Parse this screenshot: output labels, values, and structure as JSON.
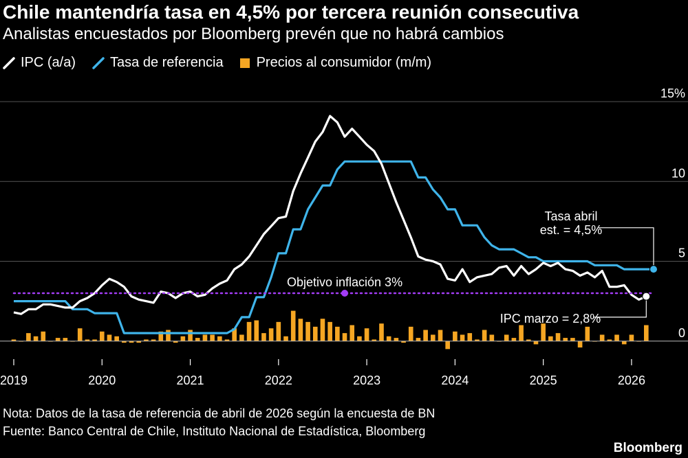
{
  "header": {
    "title": "Chile mantendría tasa en 4,5% por tercera reunión consecutiva",
    "subtitle": "Analistas encuestados por Bloomberg prevén que no habrá cambios"
  },
  "legend": {
    "items": [
      {
        "label": "IPC (a/a)",
        "color": "#ffffff",
        "shape": "line"
      },
      {
        "label": "Tasa de referencia",
        "color": "#3fb4ea",
        "shape": "line"
      },
      {
        "label": "Precios al consumidor (m/m)",
        "color": "#f5a623",
        "shape": "bar"
      }
    ]
  },
  "footer": {
    "note": "Nota: Datos de la tasa de referencia de abril de 2026 según la encuesta de BN",
    "source": "Fuente: Banco Central de Chile, Instituto Nacional de Estadística, Bloomberg",
    "logo": "Bloomberg"
  },
  "chart_data": {
    "type": "line",
    "x_start": "2019-01",
    "frequency": "monthly",
    "xlim": [
      "2019-01",
      "2026-04"
    ],
    "ylim": [
      -1,
      15
    ],
    "y_ticks": [
      {
        "value": 0,
        "label": "0"
      },
      {
        "value": 5,
        "label": "5"
      },
      {
        "value": 10,
        "label": "10"
      },
      {
        "value": 15,
        "label": "15%"
      }
    ],
    "x_ticks": [
      {
        "date": "2019-01",
        "label": "2019"
      },
      {
        "date": "2020-01",
        "label": "2020"
      },
      {
        "date": "2021-01",
        "label": "2021"
      },
      {
        "date": "2022-01",
        "label": "2022"
      },
      {
        "date": "2023-01",
        "label": "2023"
      },
      {
        "date": "2024-01",
        "label": "2024"
      },
      {
        "date": "2025-01",
        "label": "2025"
      },
      {
        "date": "2026-01",
        "label": "2026"
      }
    ],
    "series": [
      {
        "name": "IPC (a/a)",
        "color": "#ffffff",
        "values": [
          1.8,
          1.7,
          2.0,
          2.0,
          2.3,
          2.3,
          2.2,
          2.1,
          2.1,
          2.5,
          2.7,
          3.0,
          3.5,
          3.9,
          3.7,
          3.4,
          2.8,
          2.6,
          2.5,
          2.4,
          3.1,
          3.0,
          2.7,
          3.0,
          3.1,
          2.8,
          2.9,
          3.3,
          3.6,
          3.8,
          4.5,
          4.8,
          5.3,
          6.0,
          6.7,
          7.2,
          7.7,
          7.8,
          9.4,
          10.5,
          11.5,
          12.5,
          13.1,
          14.1,
          13.7,
          12.8,
          13.3,
          12.8,
          12.3,
          11.9,
          11.1,
          9.9,
          8.7,
          7.6,
          6.5,
          5.3,
          5.1,
          5.0,
          4.8,
          3.9,
          3.8,
          4.5,
          3.7,
          4.0,
          4.1,
          4.2,
          4.6,
          4.7,
          4.1,
          4.7,
          4.2,
          4.5,
          4.9,
          4.7,
          4.9,
          4.5,
          4.4,
          4.1,
          4.3,
          4.0,
          4.4,
          3.4,
          3.4,
          3.5,
          2.9,
          2.6,
          2.8
        ],
        "last_value": 2.8
      },
      {
        "name": "Tasa de referencia",
        "color": "#3fb4ea",
        "values": [
          2.5,
          2.5,
          2.5,
          2.5,
          2.5,
          2.5,
          2.5,
          2.5,
          2.0,
          2.0,
          2.0,
          1.75,
          1.75,
          1.75,
          1.75,
          0.5,
          0.5,
          0.5,
          0.5,
          0.5,
          0.5,
          0.5,
          0.5,
          0.5,
          0.5,
          0.5,
          0.5,
          0.5,
          0.5,
          0.5,
          0.75,
          1.5,
          1.5,
          2.75,
          2.75,
          4.0,
          5.5,
          5.5,
          7.0,
          7.0,
          8.25,
          9.0,
          9.75,
          9.75,
          10.75,
          11.25,
          11.25,
          11.25,
          11.25,
          11.25,
          11.25,
          11.25,
          11.25,
          11.25,
          11.25,
          10.25,
          10.25,
          9.5,
          9.0,
          8.25,
          8.25,
          7.25,
          7.25,
          7.25,
          6.5,
          6.0,
          5.75,
          5.75,
          5.75,
          5.5,
          5.25,
          5.25,
          5.0,
          5.0,
          5.0,
          5.0,
          5.0,
          5.0,
          5.0,
          4.75,
          4.75,
          4.75,
          4.75,
          4.5,
          4.5,
          4.5,
          4.5,
          4.5
        ],
        "last_value": 4.5
      },
      {
        "name": "Precios al consumidor (m/m)",
        "color": "#f5a623",
        "type": "bar",
        "values": [
          0.1,
          0.0,
          0.5,
          0.3,
          0.6,
          0.0,
          0.2,
          0.2,
          0.0,
          0.8,
          0.1,
          0.1,
          0.6,
          0.4,
          0.3,
          -0.1,
          -0.1,
          -0.1,
          0.1,
          0.1,
          0.6,
          0.7,
          -0.1,
          0.3,
          0.7,
          0.2,
          0.4,
          0.4,
          0.3,
          0.1,
          0.8,
          0.4,
          1.2,
          1.3,
          0.5,
          0.8,
          1.2,
          0.3,
          1.9,
          1.4,
          1.2,
          0.9,
          1.4,
          1.2,
          0.9,
          0.5,
          1.0,
          0.3,
          0.8,
          0.1,
          1.1,
          0.3,
          0.2,
          -0.1,
          0.9,
          0.2,
          0.7,
          0.4,
          0.7,
          -0.5,
          0.6,
          0.4,
          0.5,
          0.1,
          0.7,
          0.4,
          0.0,
          0.4,
          0.2,
          1.0,
          0.1,
          -0.2,
          1.1,
          0.3,
          0.5,
          0.2,
          0.2,
          -0.4,
          0.9,
          0.0,
          0.4,
          0.1,
          0.4,
          -0.2,
          0.4,
          0.0,
          1.0
        ]
      }
    ],
    "reference_line": {
      "label": "Objetivo inflación 3%",
      "value": 3,
      "color": "#a33cf5",
      "marker_date": "2022-10"
    },
    "annotations": [
      {
        "text": "Tasa abril",
        "text2": "est. = 4,5%"
      },
      {
        "text": "IPC marzo = 2,8%"
      }
    ]
  }
}
